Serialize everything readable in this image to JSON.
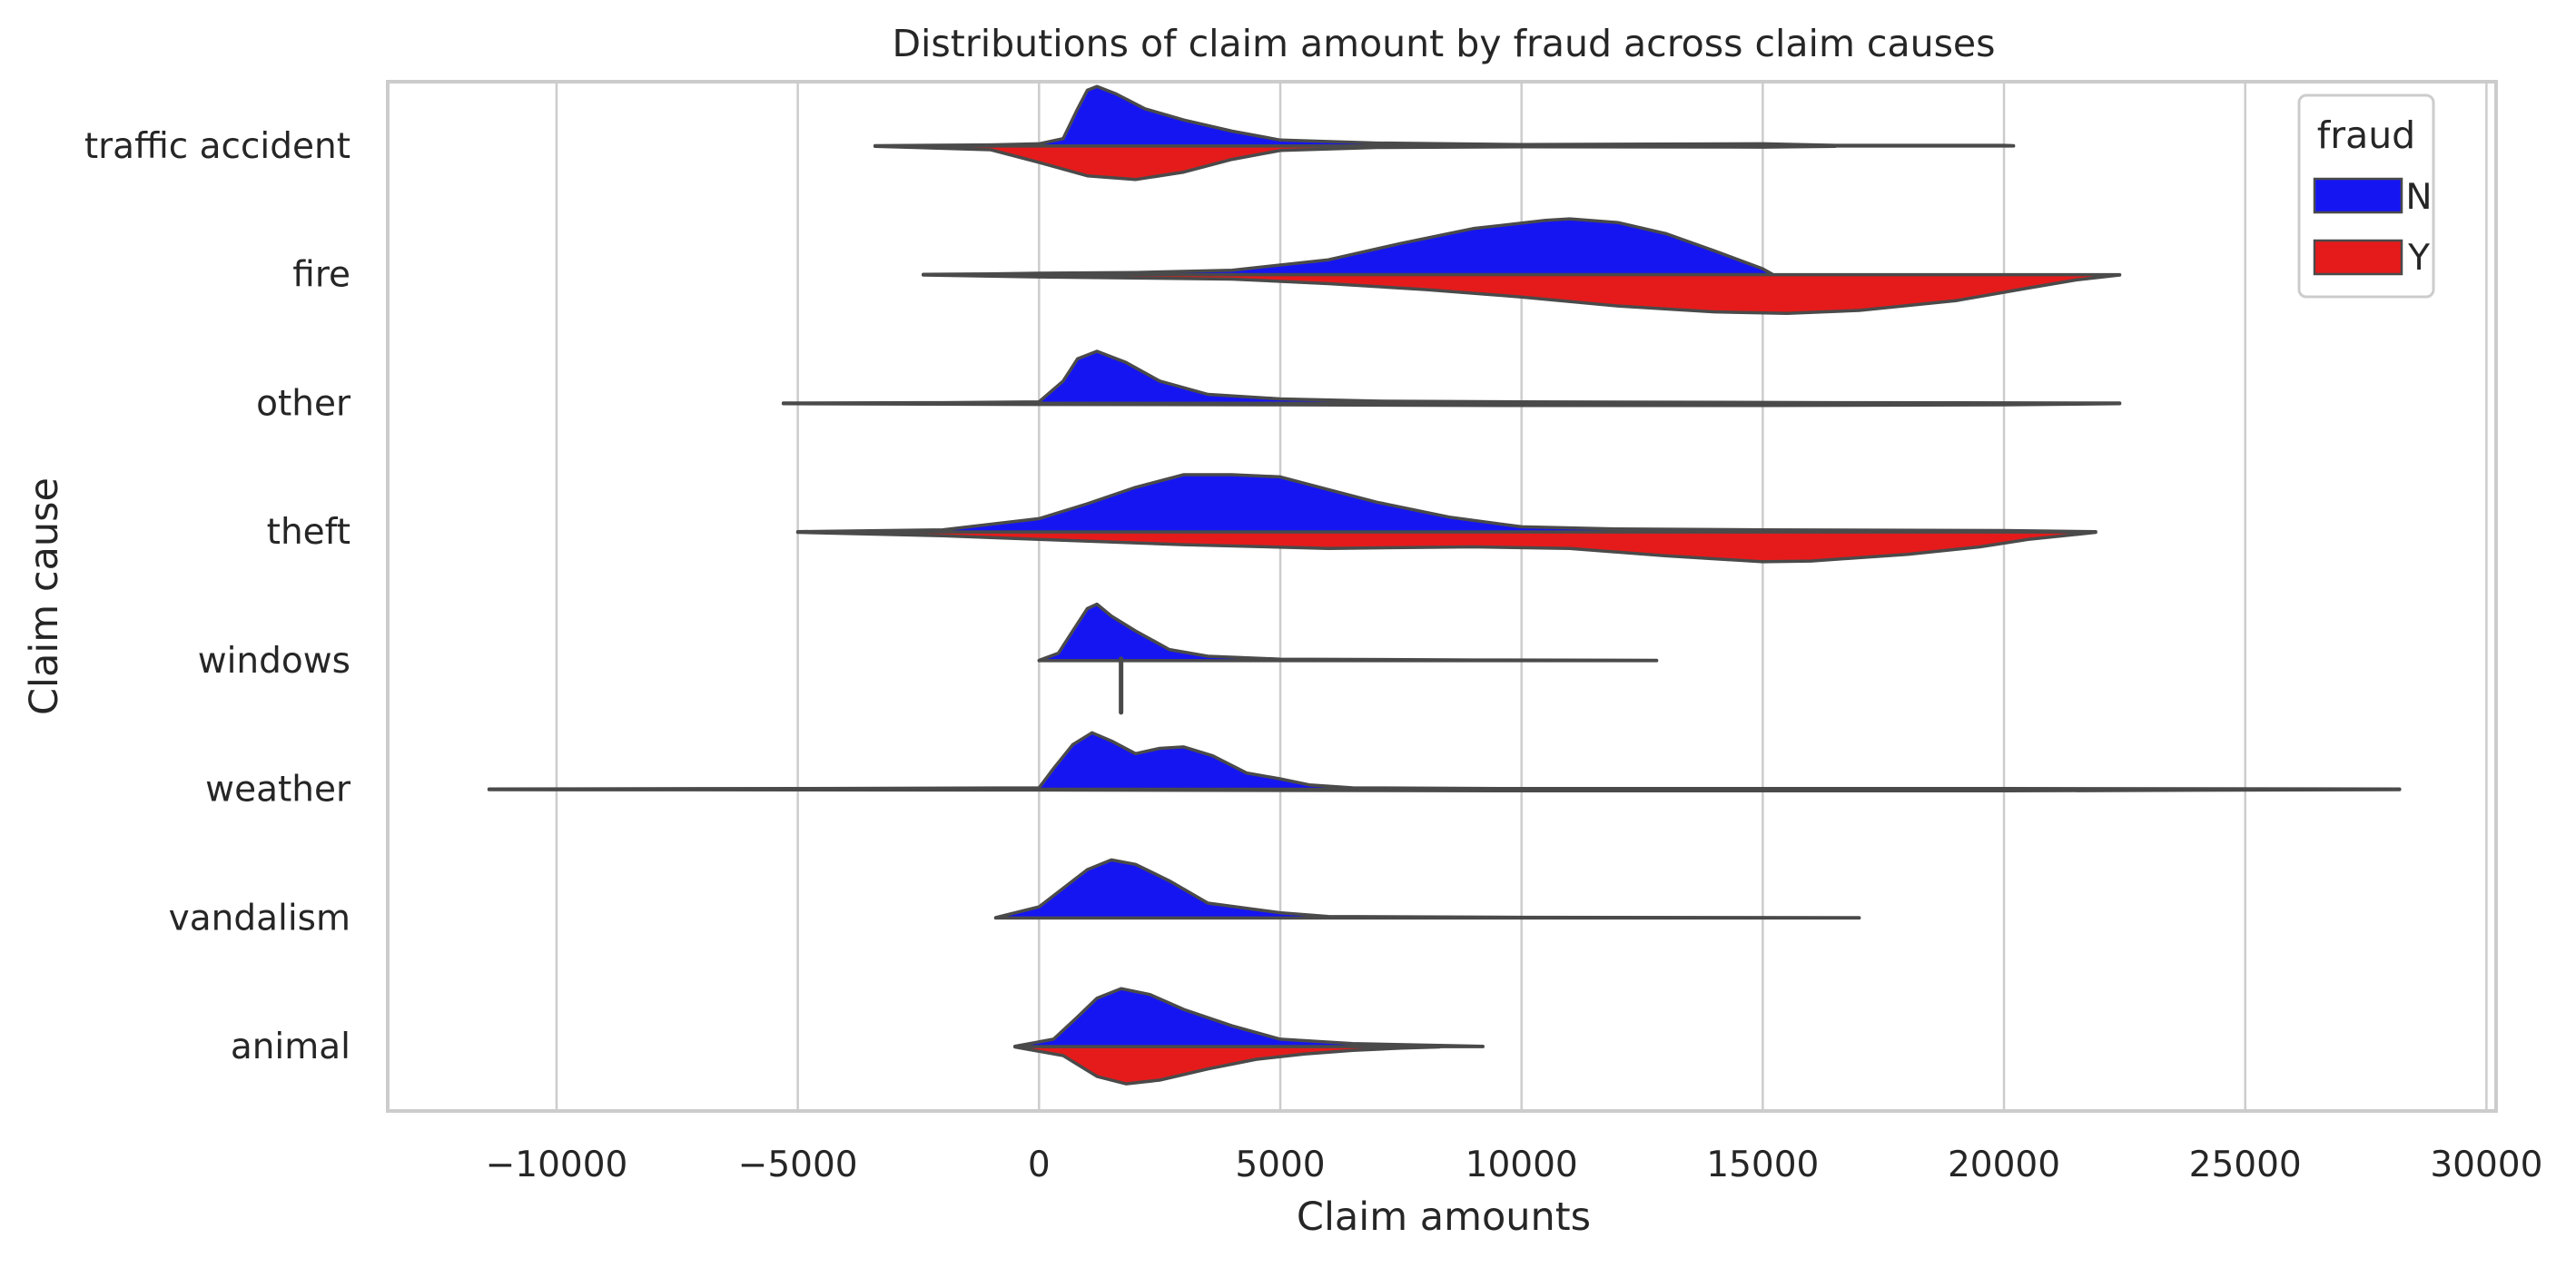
{
  "chart_data": {
    "type": "violin",
    "title": "Distributions of claim amount by fraud across claim causes",
    "xlabel": "Claim amounts",
    "ylabel": "Claim cause",
    "xlim": [
      -13500,
      30200
    ],
    "xticks": [
      -10000,
      -5000,
      0,
      5000,
      10000,
      15000,
      20000,
      25000,
      30000
    ],
    "xtick_labels": [
      "−10000",
      "−5000",
      "0",
      "5000",
      "10000",
      "15000",
      "20000",
      "25000",
      "30000"
    ],
    "grid": "vertical",
    "legend": {
      "title": "fraud",
      "placement": "top-right",
      "entries": [
        "N",
        "Y"
      ]
    },
    "colors": {
      "N": "#1515f2",
      "Y": "#e51b1b"
    },
    "categories": [
      "traffic accident",
      "fire",
      "other",
      "theft",
      "windows",
      "weather",
      "vandalism",
      "animal"
    ],
    "series": [
      {
        "name": "N",
        "violins": [
          {
            "category": "traffic accident",
            "density": [
              [
                -3400,
                0.4
              ],
              [
                -1000,
                1.5
              ],
              [
                0,
                3
              ],
              [
                500,
                10
              ],
              [
                800,
                50
              ],
              [
                1000,
                75
              ],
              [
                1200,
                80
              ],
              [
                1600,
                70
              ],
              [
                2200,
                50
              ],
              [
                3000,
                35
              ],
              [
                4000,
                20
              ],
              [
                5000,
                8
              ],
              [
                7000,
                4
              ],
              [
                10000,
                2
              ],
              [
                15000,
                3
              ],
              [
                16500,
                1
              ],
              [
                20000,
                1
              ],
              [
                20200,
                0.5
              ]
            ]
          },
          {
            "category": "fire",
            "density": [
              [
                -2400,
                0.5
              ],
              [
                -1000,
                1
              ],
              [
                0,
                2
              ],
              [
                2000,
                3
              ],
              [
                4000,
                6
              ],
              [
                6000,
                20
              ],
              [
                7500,
                42
              ],
              [
                9000,
                62
              ],
              [
                10500,
                73
              ],
              [
                11000,
                75
              ],
              [
                12000,
                70
              ],
              [
                13000,
                55
              ],
              [
                14000,
                32
              ],
              [
                15000,
                8
              ],
              [
                15200,
                0.5
              ]
            ]
          },
          {
            "category": "other",
            "density": [
              [
                -5300,
                0.5
              ],
              [
                -2000,
                1
              ],
              [
                0,
                2
              ],
              [
                500,
                30
              ],
              [
                800,
                60
              ],
              [
                1200,
                70
              ],
              [
                1800,
                55
              ],
              [
                2500,
                30
              ],
              [
                3500,
                12
              ],
              [
                5000,
                6
              ],
              [
                7000,
                3
              ],
              [
                10000,
                2
              ],
              [
                16500,
                1
              ],
              [
                22400,
                0.5
              ]
            ]
          },
          {
            "category": "theft",
            "density": [
              [
                -5000,
                0.5
              ],
              [
                -2000,
                3
              ],
              [
                0,
                18
              ],
              [
                1000,
                38
              ],
              [
                2000,
                60
              ],
              [
                3000,
                77
              ],
              [
                4000,
                77
              ],
              [
                5000,
                74
              ],
              [
                6000,
                57
              ],
              [
                7000,
                40
              ],
              [
                8500,
                20
              ],
              [
                10000,
                7
              ],
              [
                12000,
                4
              ],
              [
                15000,
                3
              ],
              [
                20000,
                2
              ],
              [
                21900,
                0.5
              ]
            ]
          },
          {
            "category": "windows",
            "density": [
              [
                0,
                0.5
              ],
              [
                400,
                10
              ],
              [
                700,
                40
              ],
              [
                1000,
                70
              ],
              [
                1200,
                76
              ],
              [
                1500,
                60
              ],
              [
                2000,
                40
              ],
              [
                2700,
                15
              ],
              [
                3500,
                6
              ],
              [
                5000,
                2
              ],
              [
                9000,
                1
              ],
              [
                12800,
                0.5
              ]
            ]
          },
          {
            "category": "weather",
            "density": [
              [
                -11400,
                0.5
              ],
              [
                -5000,
                1
              ],
              [
                0,
                2
              ],
              [
                300,
                28
              ],
              [
                700,
                60
              ],
              [
                1100,
                76
              ],
              [
                1500,
                65
              ],
              [
                2000,
                48
              ],
              [
                2500,
                55
              ],
              [
                3000,
                57
              ],
              [
                3600,
                45
              ],
              [
                4300,
                22
              ],
              [
                5000,
                14
              ],
              [
                5600,
                6
              ],
              [
                6500,
                2
              ],
              [
                10000,
                1
              ],
              [
                20000,
                1
              ],
              [
                28200,
                0.5
              ]
            ]
          },
          {
            "category": "vandalism",
            "density": [
              [
                -900,
                0.5
              ],
              [
                0,
                15
              ],
              [
                500,
                40
              ],
              [
                1000,
                65
              ],
              [
                1500,
                78
              ],
              [
                2000,
                72
              ],
              [
                2700,
                50
              ],
              [
                3500,
                20
              ],
              [
                5000,
                7
              ],
              [
                6000,
                2
              ],
              [
                10000,
                1
              ],
              [
                17000,
                0.5
              ]
            ]
          },
          {
            "category": "animal",
            "density": [
              [
                -500,
                0.5
              ],
              [
                300,
                10
              ],
              [
                800,
                40
              ],
              [
                1200,
                65
              ],
              [
                1700,
                78
              ],
              [
                2300,
                70
              ],
              [
                3000,
                50
              ],
              [
                4000,
                28
              ],
              [
                5000,
                10
              ],
              [
                6500,
                4
              ],
              [
                9200,
                0.5
              ]
            ]
          }
        ]
      },
      {
        "name": "Y",
        "violins": [
          {
            "category": "traffic accident",
            "density": [
              [
                -3400,
                0.4
              ],
              [
                -1000,
                5
              ],
              [
                0,
                22
              ],
              [
                1000,
                40
              ],
              [
                2000,
                45
              ],
              [
                3000,
                35
              ],
              [
                4000,
                18
              ],
              [
                5000,
                6
              ],
              [
                7000,
                2
              ],
              [
                10000,
                1
              ],
              [
                15000,
                1.5
              ],
              [
                16500,
                0.5
              ]
            ]
          },
          {
            "category": "fire",
            "density": [
              [
                -2400,
                0.5
              ],
              [
                0,
                3
              ],
              [
                4000,
                6
              ],
              [
                6000,
                12
              ],
              [
                8000,
                20
              ],
              [
                10000,
                30
              ],
              [
                12000,
                42
              ],
              [
                14000,
                50
              ],
              [
                15500,
                52
              ],
              [
                17000,
                48
              ],
              [
                19000,
                35
              ],
              [
                20500,
                18
              ],
              [
                21500,
                7
              ],
              [
                22400,
                0.5
              ]
            ]
          },
          {
            "category": "other",
            "density": [
              [
                -5300,
                0.5
              ],
              [
                0,
                1.5
              ],
              [
                5000,
                2
              ],
              [
                10000,
                3
              ],
              [
                15000,
                3
              ],
              [
                20000,
                2
              ],
              [
                22400,
                0.5
              ]
            ]
          },
          {
            "category": "theft",
            "density": [
              [
                -5000,
                0.5
              ],
              [
                -2000,
                5
              ],
              [
                0,
                10
              ],
              [
                3000,
                17
              ],
              [
                6000,
                22
              ],
              [
                9000,
                20
              ],
              [
                11000,
                22
              ],
              [
                13000,
                32
              ],
              [
                15000,
                40
              ],
              [
                16000,
                39
              ],
              [
                18000,
                30
              ],
              [
                19500,
                20
              ],
              [
                20500,
                10
              ],
              [
                21900,
                0.5
              ]
            ]
          },
          {
            "category": "weather",
            "density": [
              [
                -11400,
                0.5
              ],
              [
                0,
                1
              ],
              [
                10000,
                2
              ],
              [
                20000,
                2
              ],
              [
                28200,
                0.5
              ]
            ]
          },
          {
            "category": "animal",
            "density": [
              [
                -500,
                0.5
              ],
              [
                500,
                12
              ],
              [
                1200,
                40
              ],
              [
                1800,
                50
              ],
              [
                2500,
                45
              ],
              [
                3500,
                30
              ],
              [
                4500,
                17
              ],
              [
                5500,
                10
              ],
              [
                6500,
                5
              ],
              [
                7500,
                2
              ],
              [
                8300,
                0.5
              ]
            ]
          }
        ]
      }
    ],
    "extra_marks": [
      {
        "category": "windows",
        "type": "vertical-line",
        "x": 1700
      }
    ]
  }
}
